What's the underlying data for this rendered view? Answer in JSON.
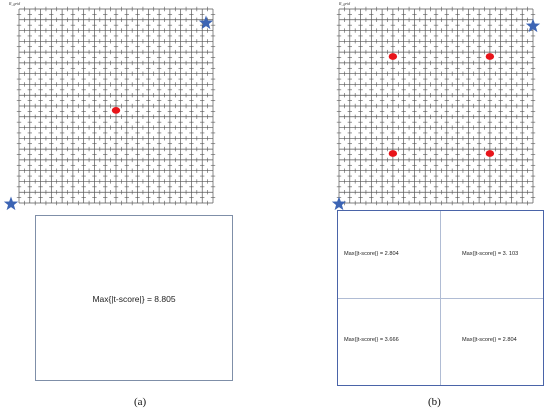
{
  "panels": [
    {
      "grid_label": "R_grid",
      "hotspots": [
        [
          9,
          9
        ]
      ],
      "result_text": "Max{|t-score|} = 8.805",
      "caption": "(a)"
    },
    {
      "grid_label": "R_grid",
      "hotspots": [
        [
          5,
          4
        ],
        [
          14,
          4
        ],
        [
          5,
          13
        ],
        [
          14,
          13
        ]
      ],
      "results": [
        "Max{|t-score|} = 2.804",
        "Max{|t-score|} = 3. 103",
        "Max{|t-score|} = 3.666",
        "Max{|t-score|} = 2.804"
      ],
      "caption": "(b)"
    }
  ],
  "colors": {
    "grid": "#555555",
    "hotspot": "#e8141a",
    "star": "#3c64b4",
    "box_border_a": "#7f8fa8",
    "box_border_b": "#4a64a8"
  },
  "grid_cells": 18
}
